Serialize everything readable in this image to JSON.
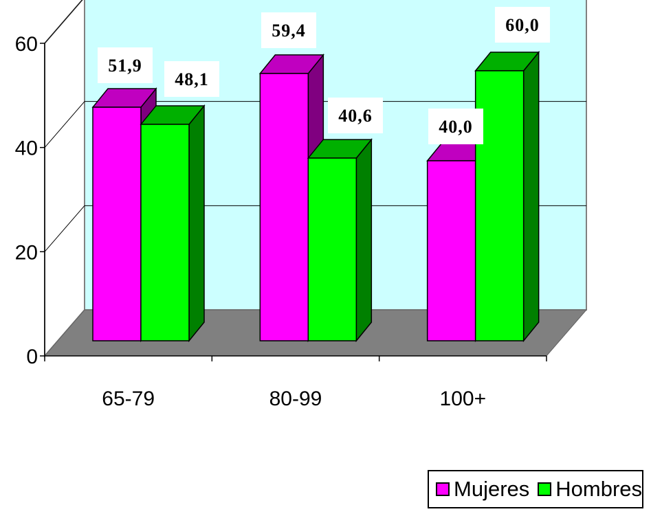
{
  "chart_data": {
    "type": "bar",
    "categories": [
      "65-79",
      "80-99",
      "100+"
    ],
    "series": [
      {
        "name": "Mujeres",
        "values": [
          51.9,
          59.4,
          40.0
        ],
        "labels": [
          "51,9",
          "59,4",
          "40,0"
        ],
        "color": "#ff00ff",
        "dark": "#800080"
      },
      {
        "name": "Hombres",
        "values": [
          48.1,
          40.6,
          60.0
        ],
        "labels": [
          "48,1",
          "40,6",
          "60,0"
        ],
        "color": "#00ff00",
        "dark": "#008000"
      }
    ],
    "ylim": [
      0,
      60
    ],
    "yticks": [
      0,
      20,
      40,
      60
    ],
    "grid": true,
    "legend": "bottom-right",
    "colors": {
      "back_wall": "#ccffff",
      "floor": "#808080",
      "side_wall": "#ffffff"
    }
  }
}
